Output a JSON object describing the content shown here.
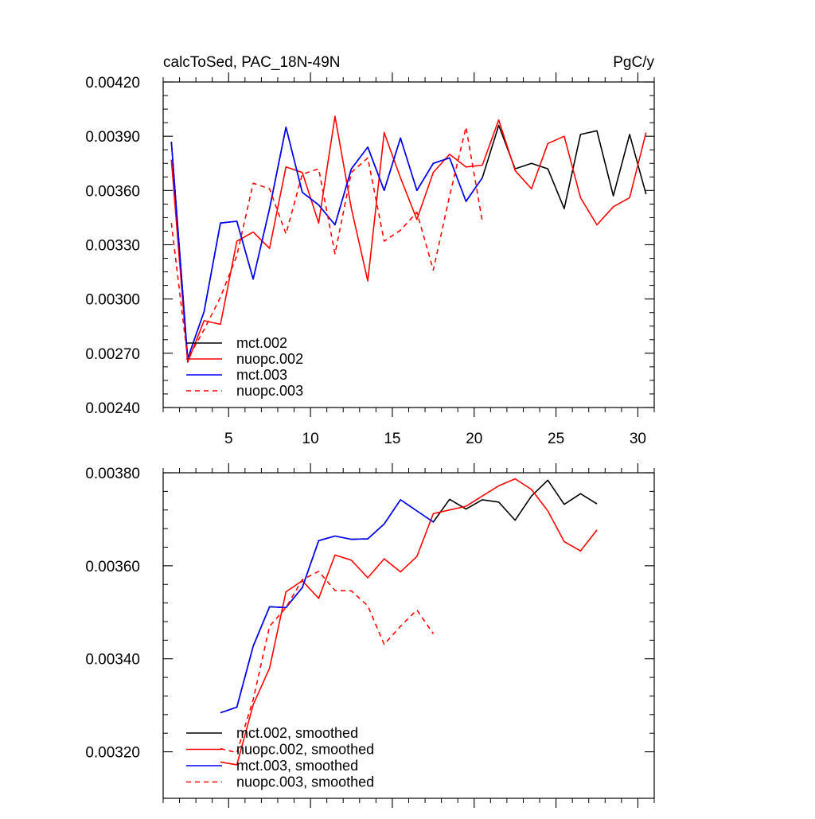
{
  "chart_data": [
    {
      "type": "line",
      "title_left": "calcToSed, PAC_18N-49N",
      "title_right": "PgC/y",
      "xlabel": "",
      "ylabel": "",
      "xlim": [
        1,
        31
      ],
      "ylim": [
        0.0024,
        0.0042
      ],
      "xticks": [
        5,
        10,
        15,
        20,
        25,
        30
      ],
      "xtick_labels": [
        "5",
        "10",
        "15",
        "20",
        "25",
        "30"
      ],
      "yticks": [
        0.0024,
        0.0027,
        0.003,
        0.0033,
        0.0036,
        0.0039,
        0.0042
      ],
      "ytick_labels": [
        "0.00240",
        "0.00270",
        "0.00300",
        "0.00330",
        "0.00360",
        "0.00390",
        "0.00420"
      ],
      "legend_position": "bottom-left",
      "series": [
        {
          "name": "mct.002",
          "color": "#000000",
          "dash": "solid",
          "x": [
            1.5,
            2.5,
            3.5,
            4.5,
            5.5,
            6.5,
            7.5,
            8.5,
            9.5,
            10.5,
            11.5,
            12.5,
            13.5,
            14.5,
            15.5,
            16.5,
            17.5,
            18.5,
            19.5,
            20.5,
            21.5,
            22.5,
            23.5,
            24.5,
            25.5,
            26.5,
            27.5,
            28.5,
            29.5,
            30.5
          ],
          "values": [
            0.00387,
            0.00267,
            0.00293,
            0.00342,
            0.00343,
            0.00311,
            0.0035,
            0.00395,
            0.00359,
            0.00352,
            0.00341,
            0.00372,
            0.00384,
            0.0036,
            0.00389,
            0.0036,
            0.00375,
            0.00378,
            0.00354,
            0.00367,
            0.00396,
            0.00372,
            0.00375,
            0.00372,
            0.0035,
            0.00391,
            0.00393,
            0.00357,
            0.00391,
            0.00358
          ]
        },
        {
          "name": "nuopc.002",
          "color": "#ff0000",
          "dash": "solid",
          "x": [
            1.5,
            2.5,
            3.5,
            4.5,
            5.5,
            6.5,
            7.5,
            8.5,
            9.5,
            10.5,
            11.5,
            12.5,
            13.5,
            14.5,
            15.5,
            16.5,
            17.5,
            18.5,
            19.5,
            20.5,
            21.5,
            22.5,
            23.5,
            24.5,
            25.5,
            26.5,
            27.5,
            28.5,
            29.5,
            30.5
          ],
          "values": [
            0.00377,
            0.00265,
            0.00288,
            0.00286,
            0.00332,
            0.00337,
            0.00328,
            0.00373,
            0.0037,
            0.00342,
            0.00401,
            0.0035,
            0.0031,
            0.00392,
            0.00367,
            0.00344,
            0.0037,
            0.0038,
            0.00373,
            0.00374,
            0.00399,
            0.00371,
            0.00361,
            0.00386,
            0.0039,
            0.00356,
            0.00341,
            0.00351,
            0.00356,
            0.00392
          ]
        },
        {
          "name": "mct.003",
          "color": "#0000ff",
          "dash": "solid",
          "x": [
            1.5,
            2.5,
            3.5,
            4.5,
            5.5,
            6.5,
            7.5,
            8.5,
            9.5,
            10.5,
            11.5,
            12.5,
            13.5,
            14.5,
            15.5,
            16.5,
            17.5,
            18.5,
            19.5,
            20.5
          ],
          "values": [
            0.00387,
            0.00267,
            0.00293,
            0.00342,
            0.00343,
            0.00311,
            0.0035,
            0.00395,
            0.00359,
            0.00352,
            0.00341,
            0.00372,
            0.00384,
            0.0036,
            0.00389,
            0.0036,
            0.00375,
            0.00378,
            0.00354,
            0.00367
          ]
        },
        {
          "name": "nuopc.003",
          "color": "#ff0000",
          "dash": "dashed",
          "x": [
            1.5,
            2.5,
            3.5,
            4.5,
            5.5,
            6.5,
            7.5,
            8.5,
            9.5,
            10.5,
            11.5,
            12.5,
            13.5,
            14.5,
            15.5,
            16.5,
            17.5,
            18.5,
            19.5,
            20.5
          ],
          "values": [
            0.00342,
            0.00267,
            0.00283,
            0.00301,
            0.00324,
            0.00364,
            0.00361,
            0.00336,
            0.00369,
            0.00372,
            0.00325,
            0.0037,
            0.00378,
            0.00332,
            0.00338,
            0.00348,
            0.00316,
            0.00357,
            0.00395,
            0.00343
          ]
        }
      ]
    },
    {
      "type": "line",
      "title": "",
      "xlabel": "",
      "ylabel": "",
      "xlim": [
        1,
        31
      ],
      "ylim": [
        0.0031,
        0.0038
      ],
      "xticks": [
        5,
        10,
        15,
        20,
        25,
        30
      ],
      "xtick_labels": [],
      "yticks": [
        0.0032,
        0.0034,
        0.0036,
        0.0038
      ],
      "ytick_labels": [
        "0.00320",
        "0.00340",
        "0.00360",
        "0.00380"
      ],
      "legend_position": "bottom-left",
      "series": [
        {
          "name": "mct.002, smoothed",
          "color": "#000000",
          "dash": "solid",
          "x": [
            4.5,
            5.5,
            6.5,
            7.5,
            8.5,
            9.5,
            10.5,
            11.5,
            12.5,
            13.5,
            14.5,
            15.5,
            16.5,
            17.5,
            18.5,
            19.5,
            20.5,
            21.5,
            22.5,
            23.5,
            24.5,
            25.5,
            26.5,
            27.5
          ],
          "values": [
            0.003284,
            0.003296,
            0.003427,
            0.003512,
            0.00351,
            0.003553,
            0.003654,
            0.003664,
            0.003657,
            0.003658,
            0.00369,
            0.003742,
            0.003718,
            0.003694,
            0.003743,
            0.003722,
            0.003742,
            0.003737,
            0.003698,
            0.00375,
            0.003784,
            0.003732,
            0.003755,
            0.003733
          ]
        },
        {
          "name": "nuopc.002, smoothed",
          "color": "#ff0000",
          "dash": "solid",
          "x": [
            4.5,
            5.5,
            6.5,
            7.5,
            8.5,
            9.5,
            10.5,
            11.5,
            12.5,
            13.5,
            14.5,
            15.5,
            16.5,
            17.5,
            18.5,
            19.5,
            20.5,
            21.5,
            22.5,
            23.5,
            24.5,
            25.5,
            26.5,
            27.5
          ],
          "values": [
            0.003178,
            0.003172,
            0.003301,
            0.00338,
            0.003544,
            0.003568,
            0.00353,
            0.003623,
            0.003612,
            0.003574,
            0.003615,
            0.003587,
            0.00362,
            0.003712,
            0.00372,
            0.003728,
            0.00375,
            0.003772,
            0.003787,
            0.003764,
            0.003718,
            0.003652,
            0.003632,
            0.003677
          ]
        },
        {
          "name": "mct.003, smoothed",
          "color": "#0000ff",
          "dash": "solid",
          "x": [
            4.5,
            5.5,
            6.5,
            7.5,
            8.5,
            9.5,
            10.5,
            11.5,
            12.5,
            13.5,
            14.5,
            15.5,
            16.5,
            17.5
          ],
          "values": [
            0.003284,
            0.003296,
            0.003427,
            0.003512,
            0.00351,
            0.003553,
            0.003654,
            0.003664,
            0.003657,
            0.003658,
            0.00369,
            0.003742,
            0.003718,
            0.003694
          ]
        },
        {
          "name": "nuopc.003, smoothed",
          "color": "#ff0000",
          "dash": "dashed",
          "x": [
            4.5,
            5.5,
            6.5,
            7.5,
            8.5,
            9.5,
            10.5,
            11.5,
            12.5,
            13.5,
            14.5,
            15.5,
            16.5,
            17.5
          ],
          "values": [
            0.003207,
            0.003198,
            0.003312,
            0.00347,
            0.00351,
            0.00357,
            0.003588,
            0.003547,
            0.003546,
            0.003514,
            0.003431,
            0.00347,
            0.003505,
            0.003454
          ]
        }
      ]
    }
  ]
}
